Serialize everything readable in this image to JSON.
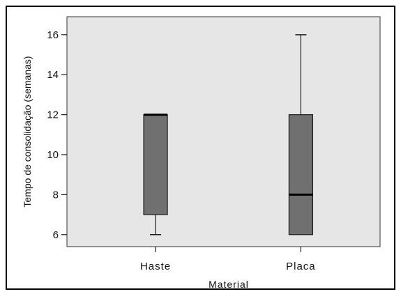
{
  "chart_data": {
    "type": "boxplot",
    "xlabel": "Material",
    "ylabel": "Tempo de consolidação (semanas)",
    "categories": [
      "Haste",
      "Placa"
    ],
    "yticks": [
      6,
      8,
      10,
      12,
      14,
      16
    ],
    "ylim": [
      5.4,
      16.9
    ],
    "grid": false,
    "legend": "none",
    "boxes": [
      {
        "category": "Haste",
        "min": 6,
        "q1": 7,
        "median": 12,
        "q3": 12,
        "max": 12
      },
      {
        "category": "Placa",
        "min": 6,
        "q1": 6,
        "median": 8,
        "q3": 12,
        "max": 16
      }
    ],
    "colors": {
      "plot_background": "#e6e6e6",
      "box_fill": "#707070",
      "line": "#1a1a1a",
      "frame": "#000000"
    }
  }
}
